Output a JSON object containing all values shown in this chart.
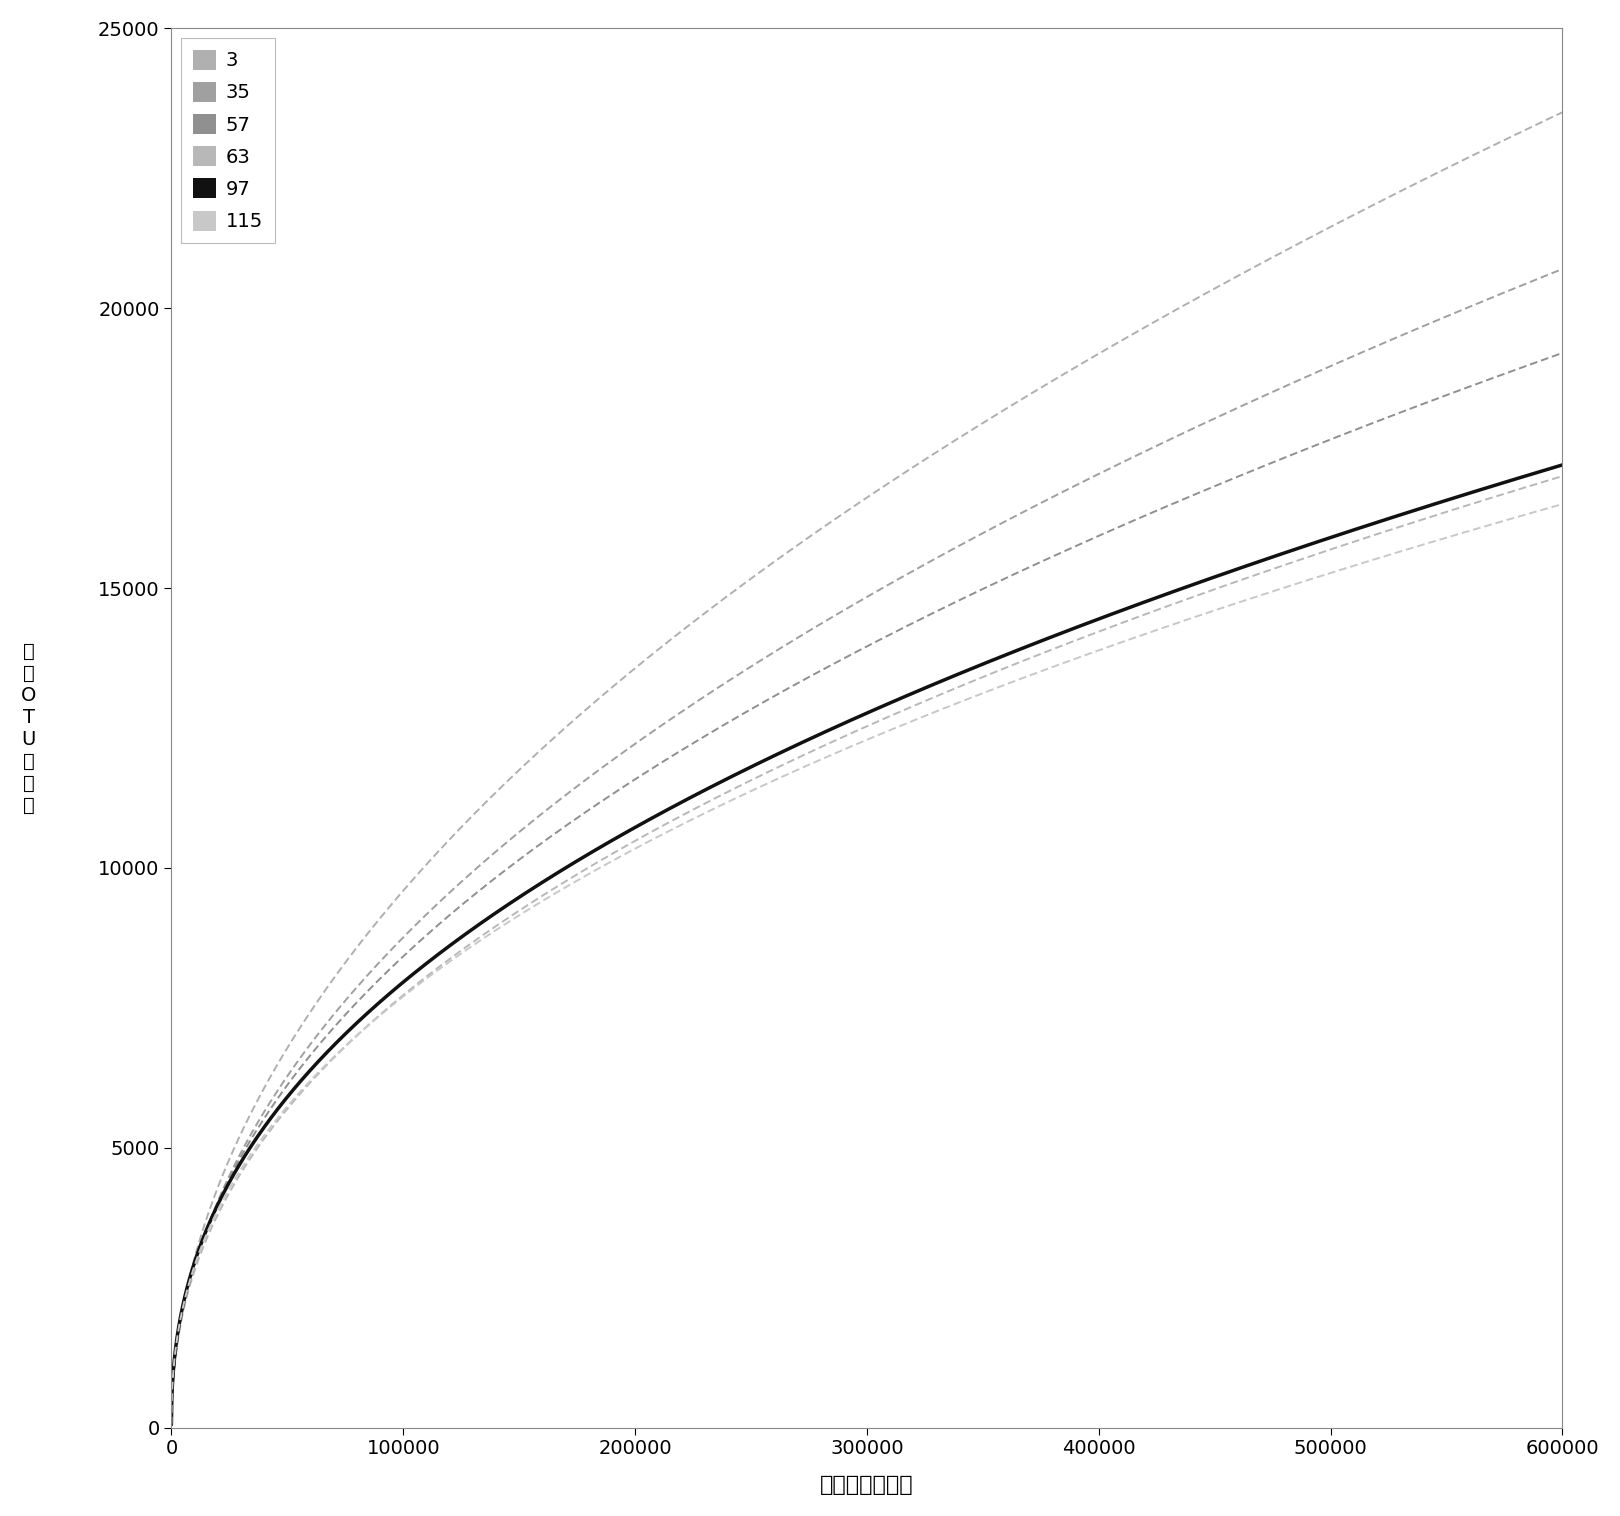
{
  "series": [
    {
      "label": "3",
      "S": 32000,
      "k": 5.5e-06,
      "color": "#b0b0b0",
      "lw": 1.5,
      "solid": false
    },
    {
      "label": "35",
      "S": 27000,
      "k": 5.8e-06,
      "color": "#a0a0a0",
      "lw": 1.5,
      "solid": false
    },
    {
      "label": "57",
      "S": 24000,
      "k": 6e-06,
      "color": "#909090",
      "lw": 1.5,
      "solid": false
    },
    {
      "label": "63",
      "S": 19500,
      "k": 6.5e-06,
      "color": "#b8b8b8",
      "lw": 1.5,
      "solid": false
    },
    {
      "label": "97",
      "S": 19000,
      "k": 7e-06,
      "color": "#111111",
      "lw": 2.5,
      "solid": true
    },
    {
      "label": "115",
      "S": 18500,
      "k": 6.8e-06,
      "color": "#c8c8c8",
      "lw": 1.5,
      "solid": false
    }
  ],
  "xlim": [
    0,
    600000
  ],
  "ylim": [
    0,
    25000
  ],
  "xticks": [
    0,
    100000,
    200000,
    300000,
    400000,
    500000,
    600000
  ],
  "yticks": [
    0,
    5000,
    10000,
    15000,
    20000,
    25000
  ],
  "xlabel": "序列标签的数量",
  "ylabel_chars": [
    "不",
    "同",
    "O",
    "T",
    "U",
    "的",
    "数",
    "量"
  ],
  "background": "#ffffff",
  "border_color": "#888888",
  "legend_border": "#aaaaaa"
}
